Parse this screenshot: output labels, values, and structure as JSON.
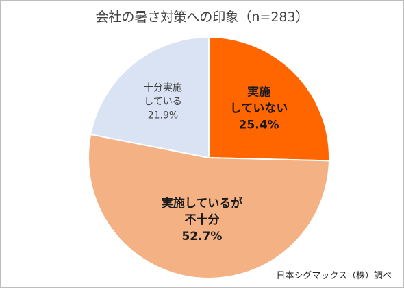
{
  "chart_data": {
    "type": "pie",
    "title": "会社の暑さ対策への印象（n=283）",
    "slices": [
      {
        "label_lines": [
          "実施",
          "していない"
        ],
        "value": 25.4,
        "value_text": "25.4%",
        "color": "#ff6600",
        "label_color": "#1a1a1a"
      },
      {
        "label_lines": [
          "実施しているが",
          "不十分"
        ],
        "value": 52.7,
        "value_text": "52.7%",
        "color": "#f4b183",
        "label_color": "#1a1a1a"
      },
      {
        "label_lines": [
          "十分実施",
          "している"
        ],
        "value": 21.9,
        "value_text": "21.9%",
        "color": "#dae3f3",
        "label_color": "#404040"
      }
    ],
    "start_angle_deg": 0,
    "direction": "clockwise"
  },
  "source": "日本シグマックス（株）調べ"
}
